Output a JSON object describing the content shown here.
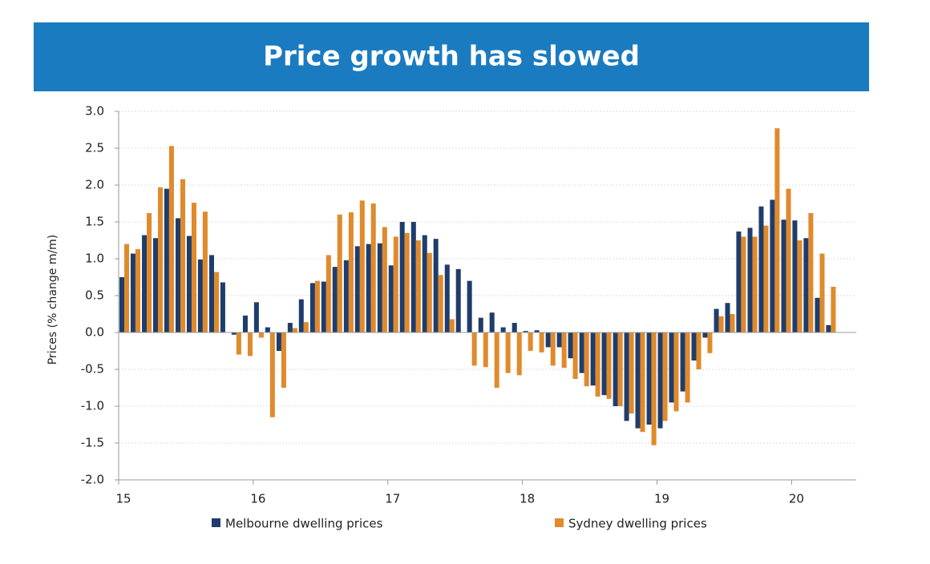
{
  "chart_data": {
    "type": "bar",
    "title": "Price growth has slowed",
    "y_label": "Prices (% change m/m)",
    "x": [
      15,
      15.083,
      15.167,
      15.25,
      15.333,
      15.417,
      15.5,
      15.583,
      15.667,
      15.75,
      15.833,
      15.917,
      16,
      16.083,
      16.167,
      16.25,
      16.333,
      16.417,
      16.5,
      16.583,
      16.667,
      16.75,
      16.833,
      16.917,
      17,
      17.083,
      17.167,
      17.25,
      17.333,
      17.417,
      17.5,
      17.583,
      17.667,
      17.75,
      17.833,
      17.917,
      18,
      18.083,
      18.167,
      18.25,
      18.333,
      18.417,
      18.5,
      18.583,
      18.667,
      18.75,
      18.833,
      18.917,
      19,
      19.083,
      19.167,
      19.25,
      19.333,
      19.417,
      19.5,
      19.583,
      19.667,
      19.75,
      19.833,
      19.917,
      20,
      20.083,
      20.167,
      20.25
    ],
    "series": [
      {
        "name": "Melbourne dwelling prices",
        "color": "#1f3d6b",
        "values": [
          0.75,
          1.07,
          1.32,
          1.28,
          1.95,
          1.55,
          1.31,
          0.99,
          1.05,
          0.68,
          -0.03,
          0.23,
          0.41,
          0.07,
          -0.25,
          0.13,
          0.45,
          0.67,
          0.69,
          0.89,
          0.98,
          1.17,
          1.2,
          1.21,
          0.91,
          1.5,
          1.5,
          1.32,
          1.27,
          0.92,
          0.86,
          0.7,
          0.2,
          0.27,
          0.07,
          0.13,
          0.02,
          0.03,
          -0.2,
          -0.2,
          -0.35,
          -0.55,
          -0.72,
          -0.85,
          -1.0,
          -1.2,
          -1.3,
          -1.25,
          -1.3,
          -0.95,
          -0.8,
          -0.38,
          -0.07,
          0.32,
          0.4,
          1.37,
          1.42,
          1.71,
          1.8,
          1.53,
          1.52,
          1.28,
          0.47,
          0.1
        ]
      },
      {
        "name": "Sydney dwelling prices",
        "color": "#e08a2c",
        "values": [
          1.2,
          1.13,
          1.62,
          1.97,
          2.53,
          2.08,
          1.76,
          1.64,
          0.82,
          0,
          -0.3,
          -0.32,
          -0.07,
          -1.15,
          -0.75,
          0.06,
          0.14,
          0.7,
          1.05,
          1.6,
          1.63,
          1.79,
          1.75,
          1.43,
          1.3,
          1.35,
          1.25,
          1.08,
          0.78,
          0.18,
          0,
          -0.45,
          -0.47,
          -0.75,
          -0.55,
          -0.58,
          -0.25,
          -0.27,
          -0.45,
          -0.48,
          -0.63,
          -0.73,
          -0.87,
          -0.9,
          -1.0,
          -1.1,
          -1.35,
          -1.53,
          -1.2,
          -1.07,
          -0.95,
          -0.5,
          -0.28,
          0.22,
          0.25,
          1.3,
          1.3,
          1.45,
          2.77,
          1.95,
          1.25,
          1.62,
          1.07,
          0.62
        ]
      }
    ],
    "xlim": [
      15,
      20.48
    ],
    "xticks": [
      15,
      16,
      17,
      18,
      19,
      20
    ],
    "ylim": [
      -2,
      3
    ],
    "yticks": [
      {
        "value": -2,
        "label": "-2.0"
      },
      {
        "value": -1.5,
        "label": "-1.5"
      },
      {
        "value": -1,
        "label": "-1.0"
      },
      {
        "value": -0.5,
        "label": "-0.5"
      },
      {
        "value": 0,
        "label": "0.0"
      },
      {
        "value": 0.5,
        "label": "0.5"
      },
      {
        "value": 1,
        "label": "1.0"
      },
      {
        "value": 1.5,
        "label": "1.5"
      },
      {
        "value": 2,
        "label": "2.0"
      },
      {
        "value": 2.5,
        "label": "2.5"
      },
      {
        "value": 3,
        "label": "3.0"
      }
    ],
    "grid": true
  }
}
